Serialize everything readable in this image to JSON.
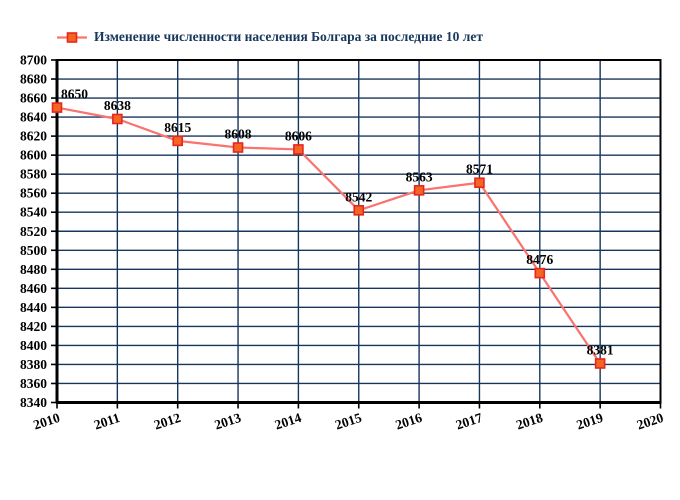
{
  "legend": {
    "label": "Изменение численности населения Болгара за последние 10 лет"
  },
  "chart_data": {
    "type": "line",
    "title": "Изменение численности населения Болгара за последние 10 лет",
    "categories": [
      2010,
      2011,
      2012,
      2013,
      2014,
      2015,
      2016,
      2017,
      2018,
      2019,
      2020
    ],
    "series": [
      {
        "name": "Изменение численности населения Болгара за последние 10 лет",
        "x": [
          2010,
          2011,
          2012,
          2013,
          2014,
          2015,
          2016,
          2017,
          2018,
          2019
        ],
        "values": [
          8650,
          8638,
          8615,
          8608,
          8606,
          8542,
          8563,
          8571,
          8476,
          8381
        ]
      }
    ],
    "xlabel": "",
    "ylabel": "",
    "ylim": [
      8340,
      8700
    ],
    "ytick_step": 20,
    "grid": true,
    "data_labels": true,
    "legend_position": "top-left",
    "colors": {
      "line": "#FA736E",
      "marker_fill": "#F26522",
      "marker_border": "#E8251F",
      "grid": "#17365C",
      "axis": "#000000",
      "legend_text": "#17365C",
      "tick_label": "#000000",
      "background": "#FFFFFF"
    }
  }
}
